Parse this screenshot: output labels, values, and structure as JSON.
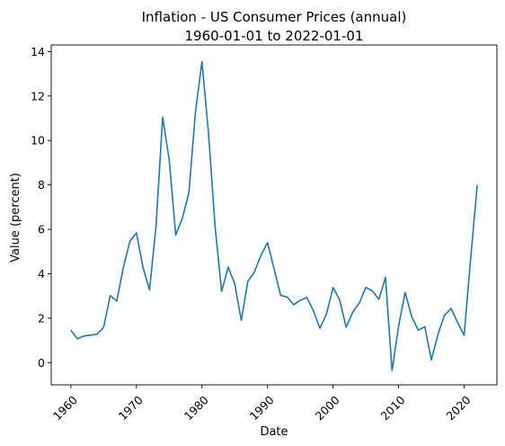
{
  "chart_data": {
    "type": "line",
    "title": "Inflation - US Consumer Prices (annual)",
    "subtitle": "1960-01-01 to 2022-01-01",
    "xlabel": "Date",
    "ylabel": "Value (percent)",
    "xlim": [
      1957,
      2025
    ],
    "ylim": [
      -1.0,
      14.3
    ],
    "xticks": [
      1960,
      1970,
      1980,
      1990,
      2000,
      2010,
      2020
    ],
    "xtick_labels": [
      "1960",
      "1970",
      "1980",
      "1990",
      "2000",
      "2010",
      "2020"
    ],
    "yticks": [
      0,
      2,
      4,
      6,
      8,
      10,
      12,
      14
    ],
    "ytick_labels": [
      "0",
      "2",
      "4",
      "6",
      "8",
      "10",
      "12",
      "14"
    ],
    "grid": false,
    "line_color": "#1f77b4",
    "x": [
      1960,
      1961,
      1962,
      1963,
      1964,
      1965,
      1966,
      1967,
      1968,
      1969,
      1970,
      1971,
      1972,
      1973,
      1974,
      1975,
      1976,
      1977,
      1978,
      1979,
      1980,
      1981,
      1982,
      1983,
      1984,
      1985,
      1986,
      1987,
      1988,
      1989,
      1990,
      1991,
      1992,
      1993,
      1994,
      1995,
      1996,
      1997,
      1998,
      1999,
      2000,
      2001,
      2002,
      2003,
      2004,
      2005,
      2006,
      2007,
      2008,
      2009,
      2010,
      2011,
      2012,
      2013,
      2014,
      2015,
      2016,
      2017,
      2018,
      2019,
      2020,
      2021,
      2022
    ],
    "values": [
      1.46,
      1.07,
      1.2,
      1.24,
      1.28,
      1.59,
      3.02,
      2.77,
      4.27,
      5.46,
      5.84,
      4.29,
      3.27,
      6.18,
      11.05,
      9.14,
      5.74,
      6.5,
      7.63,
      11.25,
      13.55,
      10.33,
      6.13,
      3.21,
      4.3,
      3.55,
      1.9,
      3.66,
      4.08,
      4.83,
      5.4,
      4.23,
      3.03,
      2.95,
      2.61,
      2.81,
      2.93,
      2.34,
      1.55,
      2.19,
      3.38,
      2.83,
      1.59,
      2.27,
      2.68,
      3.39,
      3.23,
      2.85,
      3.84,
      -0.36,
      1.64,
      3.16,
      2.07,
      1.46,
      1.62,
      0.12,
      1.26,
      2.13,
      2.44,
      1.81,
      1.23,
      4.7,
      8.0
    ]
  }
}
